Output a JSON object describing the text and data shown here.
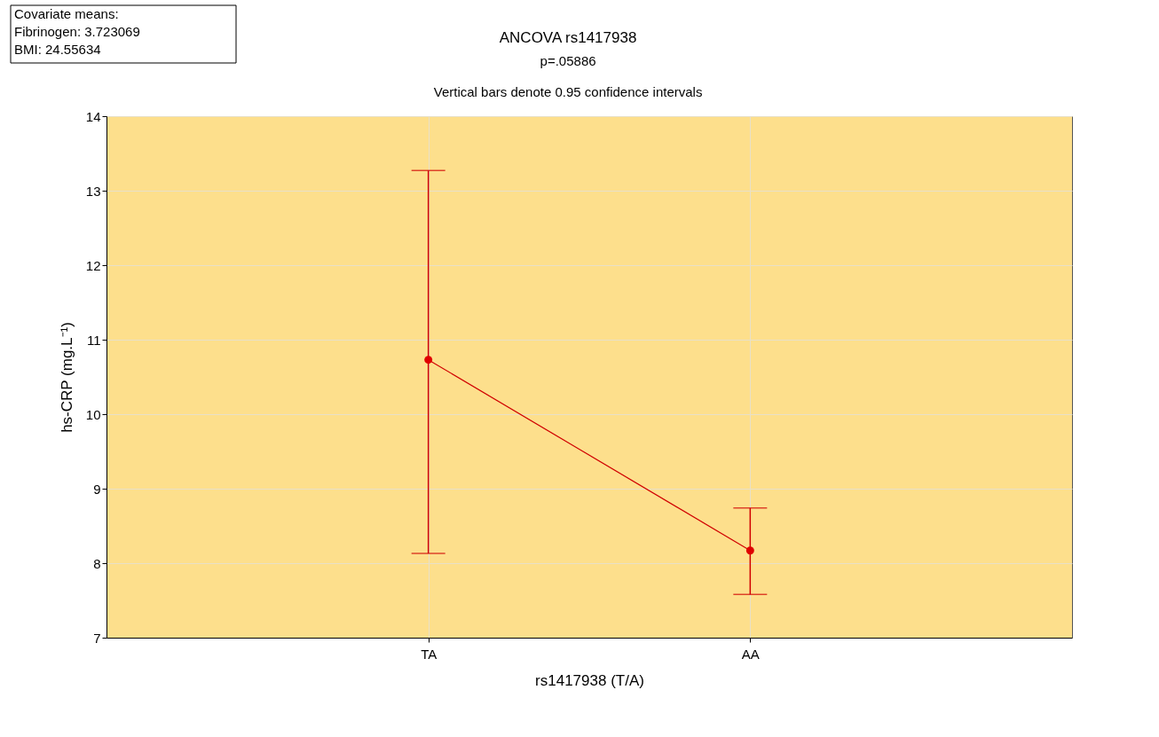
{
  "chart_data": {
    "type": "line",
    "title": "ANCOVA rs1417938",
    "subtitle": "p=.05886",
    "annotations": [
      "Covariate means:\nFibrinogen: 3.723069\nBMI: 24.55634",
      "Vertical bars denote 0.95 confidence intervals"
    ],
    "xlabel": "rs1417938 (T/A)",
    "ylabel": "hs-CRP (mg.L⁻¹)",
    "categories": [
      "TA",
      "AA"
    ],
    "series": [
      {
        "color": "#d00000",
        "values": [
          10.73,
          8.17
        ],
        "errors": [
          [
            8.13,
            13.27
          ],
          [
            7.58,
            8.74
          ]
        ]
      }
    ],
    "ylim": [
      7,
      14
    ],
    "yticks": [
      7,
      8,
      9,
      10,
      11,
      12,
      13,
      14
    ],
    "grid": true,
    "marker": "circle",
    "line_style": "solid"
  }
}
